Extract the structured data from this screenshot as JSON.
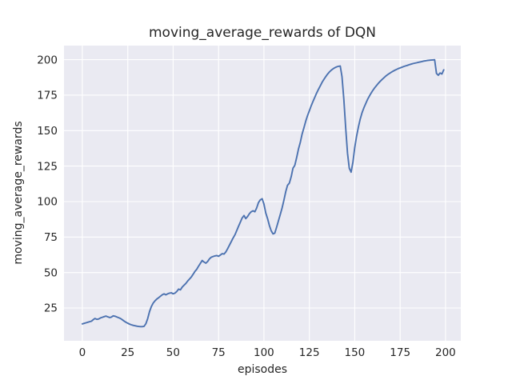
{
  "figure": {
    "title": "moving_average_rewards of DQN",
    "xlabel": "episodes",
    "ylabel": "moving_average_rewards"
  },
  "chart_data": {
    "type": "line",
    "title": "moving_average_rewards of DQN",
    "xlabel": "episodes",
    "ylabel": "moving_average_rewards",
    "x_ticks": [
      0,
      25,
      50,
      75,
      100,
      125,
      150,
      175,
      200
    ],
    "y_ticks": [
      25,
      50,
      75,
      100,
      125,
      150,
      175,
      200
    ],
    "xlim": [
      -10.1,
      208.4
    ],
    "ylim": [
      1.9,
      209.9
    ],
    "grid": true,
    "legend": "none",
    "style": {
      "figure_bg": "#ffffff",
      "axes_bg": "#eaeaf2",
      "grid_color": "#ffffff",
      "line_color": "#4c72b0",
      "text_color": "#262626"
    },
    "series": [
      {
        "name": "DQN",
        "x_start": 0,
        "x_step": 1,
        "values": [
          13.8,
          14.2,
          14.6,
          15.0,
          15.4,
          15.7,
          16.8,
          17.6,
          17.0,
          17.3,
          18.0,
          18.5,
          18.9,
          19.3,
          18.8,
          18.3,
          18.6,
          19.5,
          19.2,
          18.7,
          18.2,
          17.6,
          16.7,
          15.8,
          15.0,
          14.3,
          13.7,
          13.2,
          12.8,
          12.5,
          12.2,
          12.0,
          11.9,
          11.9,
          12.1,
          14.0,
          17.5,
          22.5,
          26.0,
          28.5,
          30.0,
          31.3,
          32.3,
          33.3,
          34.3,
          35.0,
          34.3,
          35.0,
          35.5,
          35.7,
          35.0,
          35.5,
          36.7,
          38.3,
          37.8,
          39.8,
          41.0,
          42.3,
          44.0,
          45.5,
          46.8,
          48.8,
          50.8,
          52.3,
          54.5,
          56.5,
          58.5,
          57.4,
          56.6,
          57.8,
          59.6,
          60.8,
          61.3,
          61.7,
          62.0,
          61.4,
          62.3,
          63.3,
          63.0,
          64.5,
          66.8,
          69.3,
          71.8,
          74.3,
          76.5,
          79.5,
          82.5,
          85.5,
          88.5,
          90.2,
          88.0,
          89.5,
          91.5,
          92.8,
          93.5,
          92.8,
          95.5,
          99.3,
          101.2,
          102.0,
          98.3,
          92.0,
          87.9,
          83.2,
          79.4,
          77.2,
          77.8,
          82.0,
          86.5,
          91.0,
          95.5,
          101.0,
          107.0,
          111.5,
          113.0,
          117.5,
          123.5,
          125.5,
          131.0,
          137.0,
          141.5,
          147.5,
          152.0,
          156.5,
          160.5,
          164.0,
          167.5,
          170.5,
          173.5,
          176.5,
          179.0,
          181.5,
          184.0,
          186.0,
          188.0,
          189.8,
          191.3,
          192.5,
          193.5,
          194.3,
          194.9,
          195.3,
          195.5,
          188.0,
          172.0,
          152.0,
          134.0,
          123.5,
          120.7,
          128.0,
          138.0,
          146.0,
          152.5,
          158.0,
          162.5,
          166.0,
          169.0,
          171.8,
          174.2,
          176.4,
          178.4,
          180.2,
          181.8,
          183.3,
          184.7,
          186.0,
          187.2,
          188.3,
          189.3,
          190.2,
          191.0,
          191.8,
          192.5,
          193.1,
          193.7,
          194.2,
          194.7,
          195.2,
          195.6,
          196.0,
          196.4,
          196.8,
          197.2,
          197.5,
          197.8,
          198.1,
          198.4,
          198.7,
          199.0,
          199.2,
          199.4,
          199.6,
          199.7,
          199.8,
          199.9,
          190.3,
          189.0,
          190.6,
          189.9,
          192.8
        ]
      }
    ]
  }
}
